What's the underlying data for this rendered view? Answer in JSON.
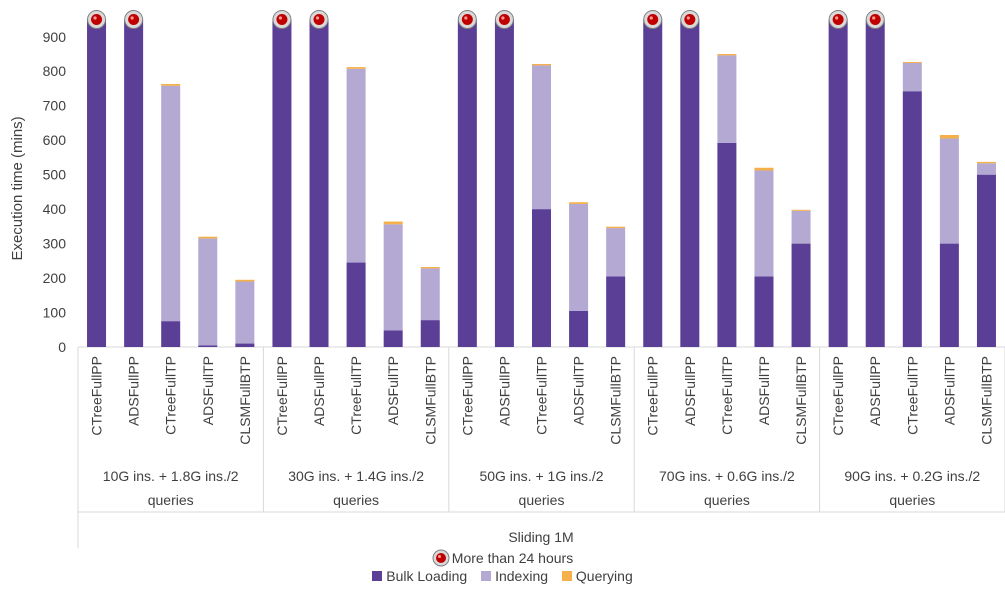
{
  "chart_data": {
    "type": "bar",
    "stacked": true,
    "ylabel": "Execution time (mins)",
    "yticks": [
      0,
      100,
      200,
      300,
      400,
      500,
      600,
      700,
      800,
      900
    ],
    "ylim": [
      0,
      950
    ],
    "grid": false,
    "groups": [
      {
        "label": "10G ins. + 1.8G ins./2 queries",
        "categories": [
          "CTreeFullPP",
          "ADSFullPP",
          "CTreeFullTP",
          "ADSFullTP",
          "CLSMFullBTP"
        ]
      },
      {
        "label": "30G ins. + 1.4G ins./2 queries",
        "categories": [
          "CTreeFullPP",
          "ADSFullPP",
          "CTreeFullTP",
          "ADSFullTP",
          "CLSMFullBTP"
        ]
      },
      {
        "label": "50G ins. + 1G ins./2 queries",
        "categories": [
          "CTreeFullPP",
          "ADSFullPP",
          "CTreeFullTP",
          "ADSFullTP",
          "CLSMFullBTP"
        ]
      },
      {
        "label": "70G ins. + 0.6G ins./2 queries",
        "categories": [
          "CTreeFullPP",
          "ADSFullPP",
          "CTreeFullTP",
          "ADSFullTP",
          "CLSMFullBTP"
        ]
      },
      {
        "label": "90G ins. + 0.2G ins./2 queries",
        "categories": [
          "CTreeFullPP",
          "ADSFullPP",
          "CTreeFullTP",
          "ADSFullTP",
          "CLSMFullBTP"
        ]
      }
    ],
    "series": [
      {
        "name": "Bulk Loading",
        "color": "#5b3e96",
        "values": [
          950,
          950,
          75,
          5,
          10,
          950,
          950,
          245,
          48,
          78,
          950,
          950,
          400,
          105,
          205,
          950,
          950,
          592,
          205,
          300,
          950,
          950,
          742,
          300,
          500
        ]
      },
      {
        "name": "Indexing",
        "color": "#b3a9d3",
        "values": [
          0,
          0,
          683,
          310,
          180,
          0,
          0,
          562,
          308,
          150,
          0,
          0,
          417,
          310,
          140,
          0,
          0,
          254,
          307,
          95,
          0,
          0,
          82,
          305,
          33
        ]
      },
      {
        "name": "Querying",
        "color": "#f5b04a",
        "values": [
          0,
          0,
          5,
          5,
          5,
          0,
          0,
          5,
          8,
          4,
          0,
          0,
          4,
          5,
          4,
          0,
          0,
          4,
          8,
          3,
          0,
          0,
          3,
          10,
          4
        ]
      }
    ],
    "over_limit": [
      true,
      true,
      false,
      false,
      false,
      true,
      true,
      false,
      false,
      false,
      true,
      true,
      false,
      false,
      false,
      true,
      true,
      false,
      false,
      false,
      true,
      true,
      false,
      false,
      false
    ],
    "footer_title": "Sliding 1M",
    "condition_note": "More than 24 hours",
    "legend_position": "bottom"
  }
}
